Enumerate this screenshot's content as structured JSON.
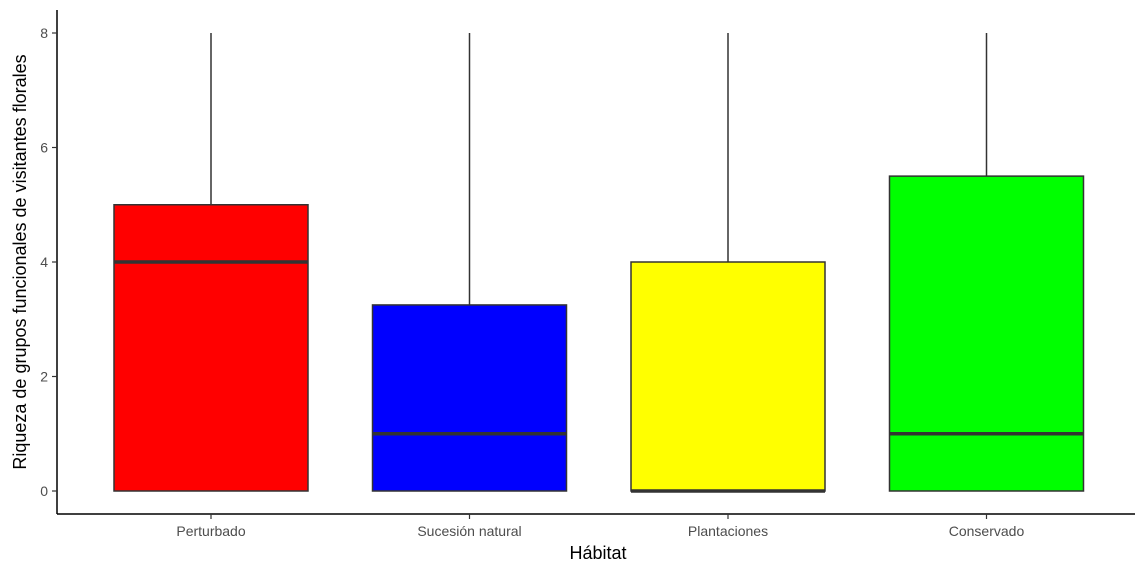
{
  "chart_data": {
    "type": "boxplot",
    "xlabel": "Hábitat",
    "ylabel": "Riqueza de grupos funcionales de visitantes florales",
    "ylim": [
      -0.4,
      8.4
    ],
    "yticks": [
      0,
      2,
      4,
      6,
      8
    ],
    "categories": [
      "Perturbado",
      "Sucesión natural",
      "Plantaciones",
      "Conservado"
    ],
    "boxes": [
      {
        "category": "Perturbado",
        "min": 0,
        "q1": 0,
        "median": 4,
        "q3": 5,
        "max": 8,
        "color": "#ff0000"
      },
      {
        "category": "Sucesión natural",
        "min": 0,
        "q1": 0,
        "median": 1,
        "q3": 3.25,
        "max": 8,
        "color": "#0000ff"
      },
      {
        "category": "Plantaciones",
        "min": 0,
        "q1": 0,
        "median": 0,
        "q3": 4,
        "max": 8,
        "color": "#ffff00"
      },
      {
        "category": "Conservado",
        "min": 0,
        "q1": 0,
        "median": 1,
        "q3": 5.5,
        "max": 8,
        "color": "#00ff00"
      }
    ],
    "grid": false,
    "legend": "none"
  }
}
